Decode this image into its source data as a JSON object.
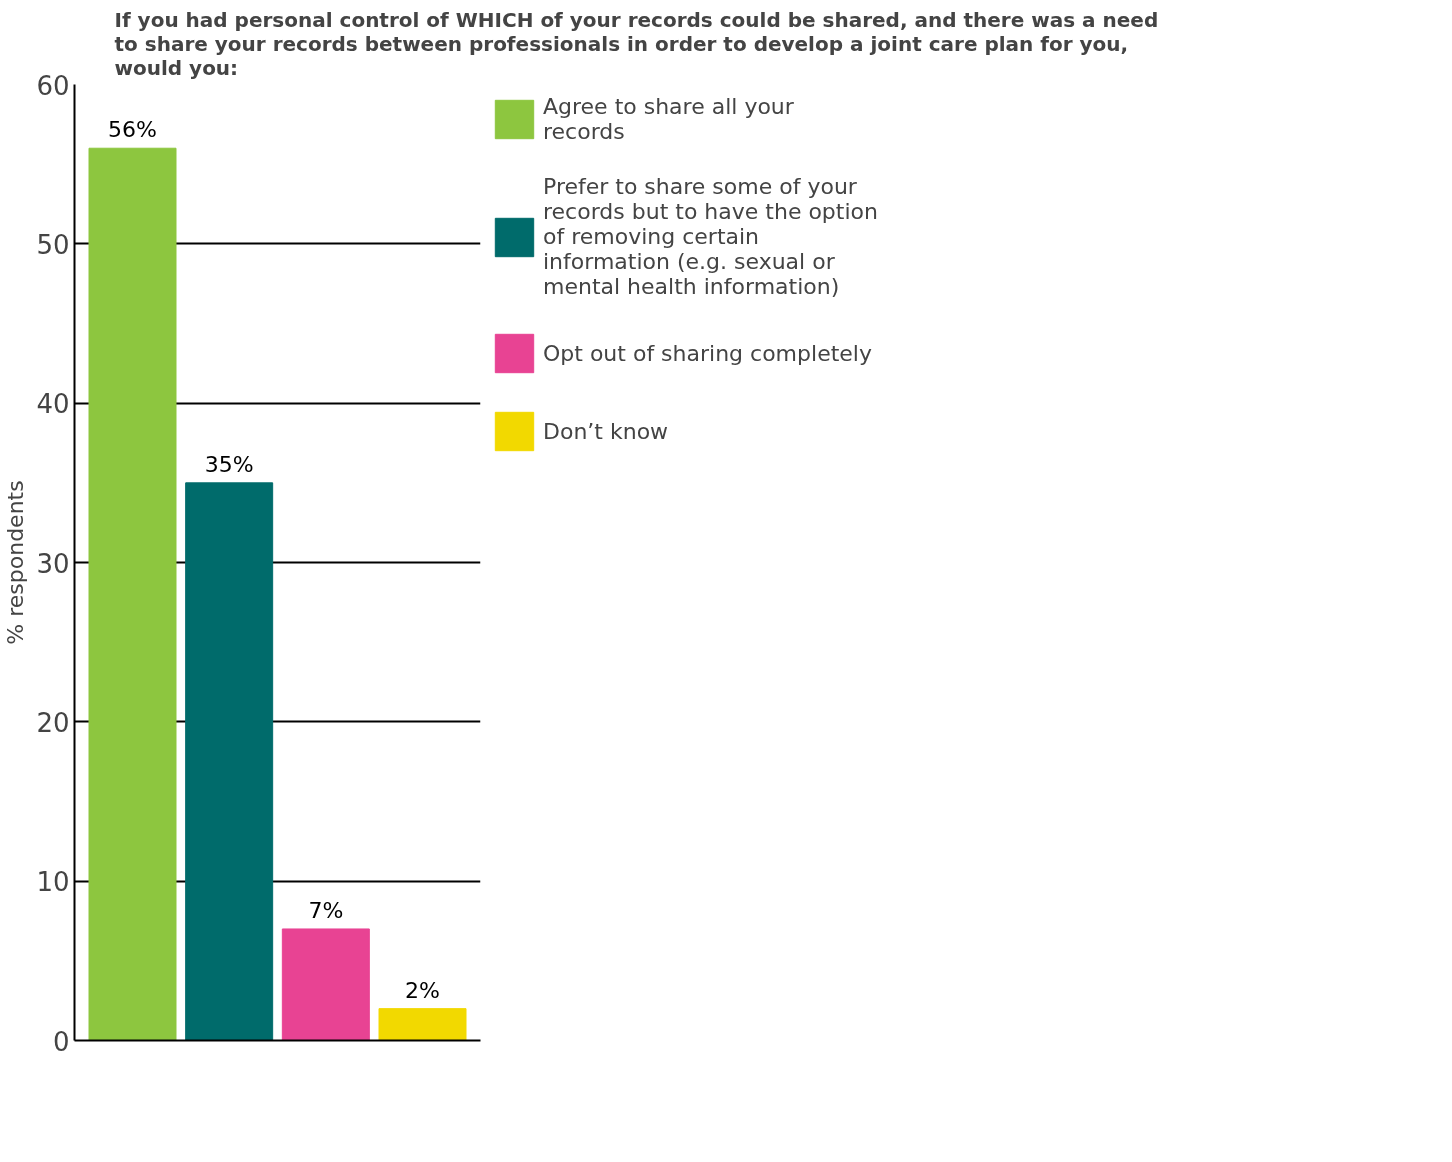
{
  "chart_data": {
    "type": "bar",
    "title": "If you had personal control of WHICH of your records could be shared, and there was a need to share your records between professionals in order to develop a joint care plan for you, would you:",
    "ylabel": "% respondents",
    "categories": [
      null,
      null,
      null,
      null
    ],
    "series": [
      {
        "name": "Agree to share all your records",
        "color": "#8dc63f",
        "values": [
          56,
          null,
          null,
          null
        ],
        "value_labels": [
          "56%",
          null,
          null,
          null
        ]
      },
      {
        "name": "Prefer to share some of your records but to have the option of removing certain information (e.g. sexual or mental health information)",
        "color": "#006b6b",
        "values": [
          null,
          35,
          null,
          null
        ],
        "value_labels": [
          null,
          "35%",
          null,
          null
        ]
      },
      {
        "name": "Opt out of sharing completely",
        "color": "#e84393",
        "values": [
          null,
          null,
          7,
          null
        ],
        "value_labels": [
          null,
          null,
          "7%",
          null
        ]
      },
      {
        "name": "Don’t know",
        "color": "#f2d900",
        "values": [
          null,
          null,
          null,
          2
        ],
        "value_labels": [
          null,
          null,
          null,
          "2%"
        ]
      }
    ],
    "ylim": [
      0,
      60
    ],
    "yticks": [
      0,
      10,
      20,
      30,
      40,
      50,
      60
    ],
    "grid": "y",
    "legend": "right",
    "tick_labels": "y"
  }
}
